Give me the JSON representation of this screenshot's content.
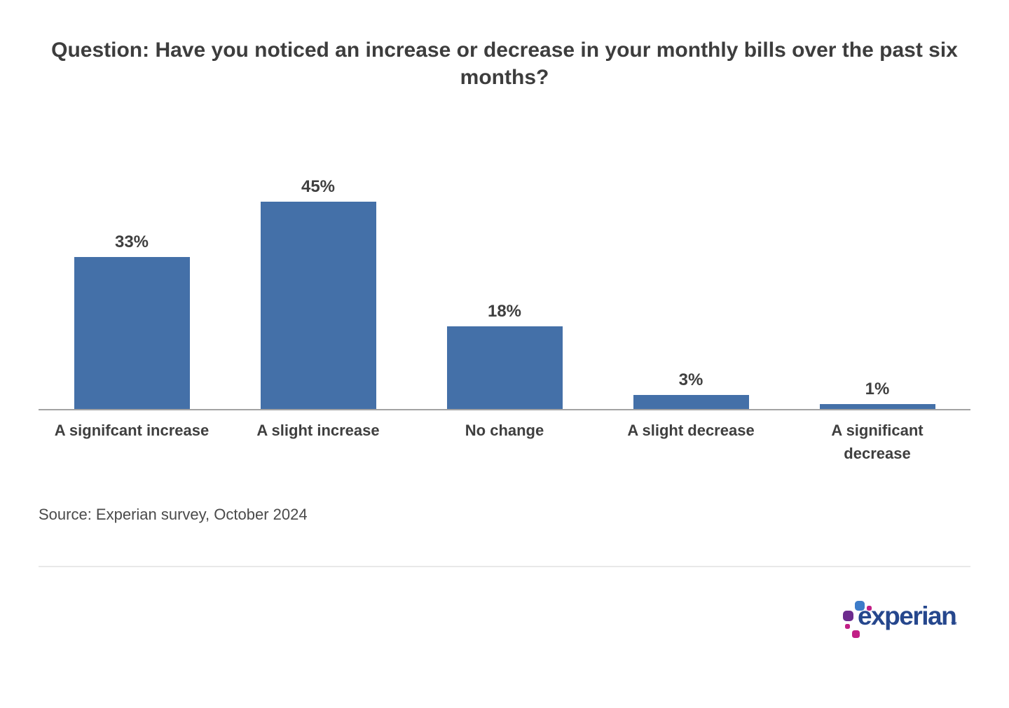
{
  "header": {
    "title": "Question: Have you noticed an increase or decrease in your monthly bills over the past six months?"
  },
  "chart_data": {
    "type": "bar",
    "title": "Question: Have you noticed an increase or decrease in your monthly bills over the past six months?",
    "categories": [
      "A signifcant increase",
      "A slight increase",
      "No change",
      "A slight decrease",
      "A significant\ndecrease"
    ],
    "values": [
      33,
      45,
      18,
      3,
      1
    ],
    "value_labels": [
      "33%",
      "45%",
      "18%",
      "3%",
      "1%"
    ],
    "xlabel": "",
    "ylabel": "",
    "ylim": [
      0,
      45
    ],
    "grid": false,
    "legend": false,
    "bar_color": "#4470A8",
    "axis_line_color": "#A3A3A3",
    "label_color": "#3F3F3F"
  },
  "source": {
    "text": "Source: Experian survey, October 2024"
  },
  "footer": {
    "logo_text": "experian",
    "trademark": "™",
    "logo_colors": {
      "blue": "#3D7CC9",
      "purple": "#6D2C8E",
      "magenta": "#C21F86",
      "text": "#26478D"
    }
  }
}
